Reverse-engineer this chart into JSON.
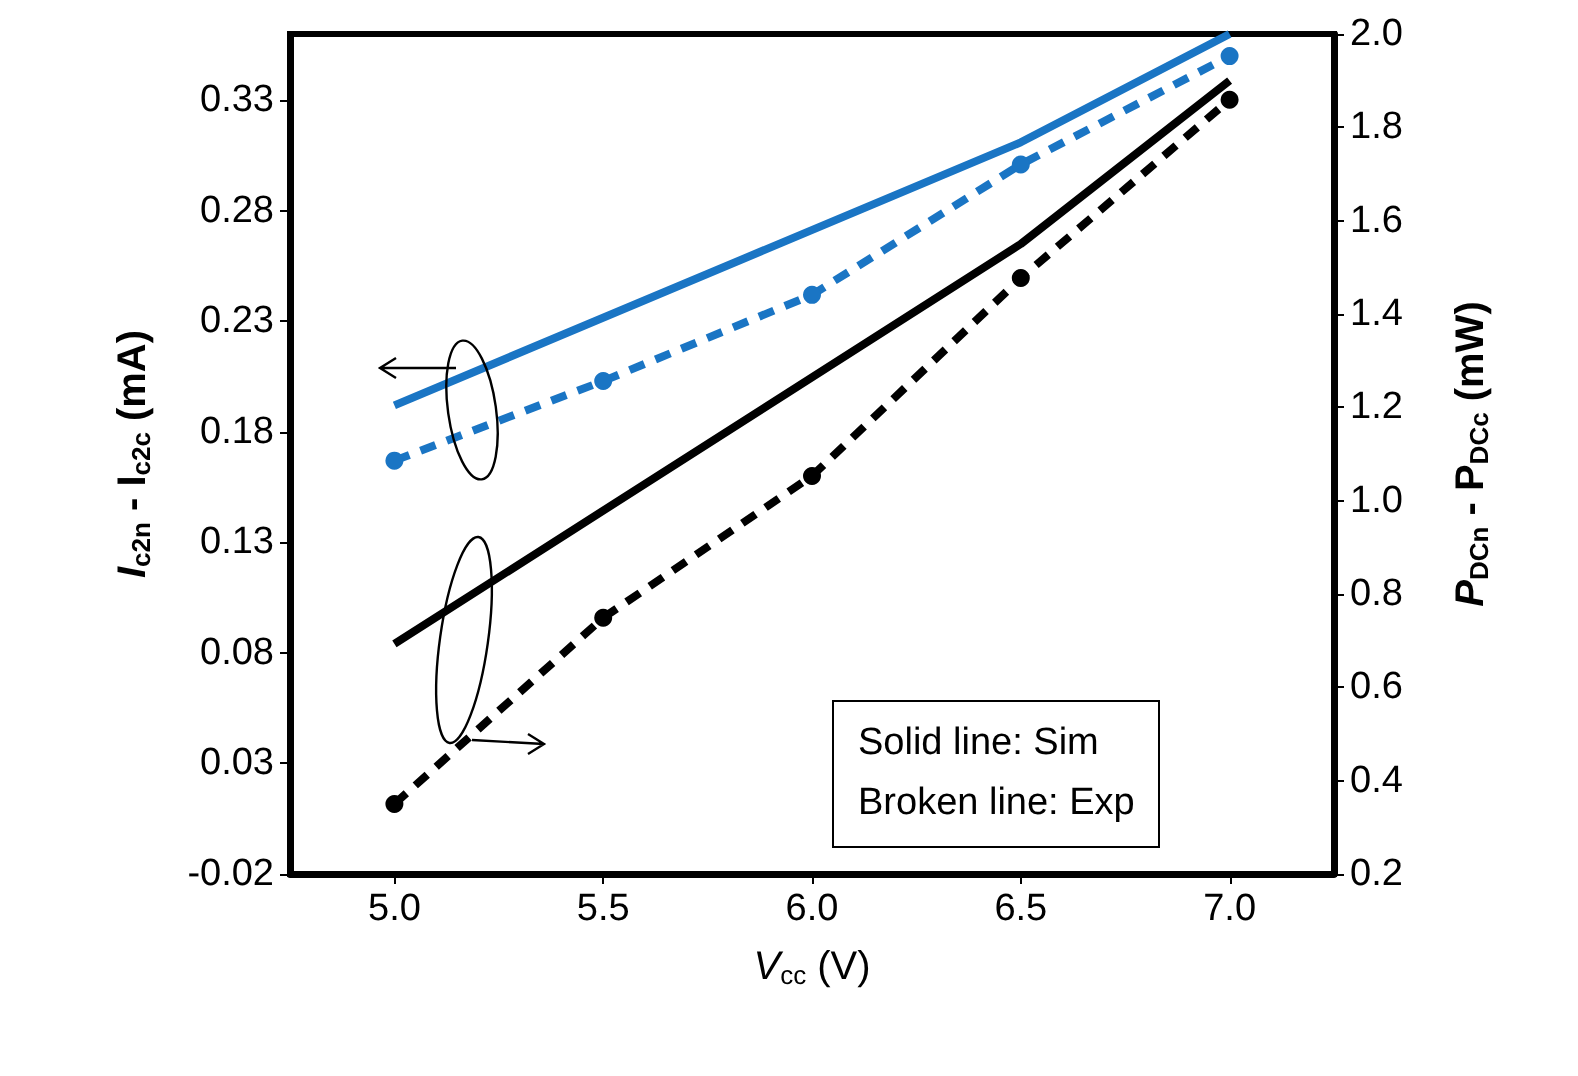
{
  "chart_data": {
    "type": "line",
    "xlabel": "V$_{cc}$ (V)",
    "ylabel": "I$_{c2n}$ - I$_{c2c}$ (mA)",
    "y2label": "P$_{DCn}$ - P$_{DCc}$ (mW)",
    "annotations": [
      "Solid line: Sim",
      "Broken line: Exp"
    ],
    "xlim": [
      4.75,
      7.25
    ],
    "xticks": [
      {
        "value": 5,
        "label": "5.0"
      },
      {
        "value": 5.5,
        "label": "5.5"
      },
      {
        "value": 6,
        "label": "6.0"
      },
      {
        "value": 6.5,
        "label": "6.5"
      },
      {
        "value": 7,
        "label": "7.0"
      }
    ],
    "ylim": [
      -0.02,
      0.36
    ],
    "yticks": [
      -0.02,
      0.03,
      0.08,
      0.13,
      0.18,
      0.23,
      0.28,
      0.33
    ],
    "y2lim": [
      0.2,
      2.0
    ],
    "y2ticks": [
      0.2,
      0.4,
      0.6,
      0.8,
      {
        "value": 1,
        "label": "1.0"
      },
      1.2,
      1.4,
      1.6,
      1.8,
      {
        "value": 2,
        "label": "2.0"
      }
    ],
    "grid": false,
    "series": [
      {
        "color": "#1a75c4",
        "x": [
          5,
          6.5,
          7
        ],
        "values": [
          0.192,
          0.311,
          0.36
        ],
        "line_style": "solid",
        "marker": "none"
      },
      {
        "color": "#1a75c4",
        "x": [
          5,
          5.5,
          6,
          6.5,
          7
        ],
        "values": [
          0.167,
          0.203,
          0.242,
          0.301,
          0.35
        ],
        "line_style": "dashed",
        "marker": "circle"
      },
      {
        "color": "#000000",
        "axis": "y2",
        "x": [
          5,
          6.5,
          7
        ],
        "values": [
          0.693,
          1.55,
          1.9
        ],
        "line_style": "solid",
        "marker": "none"
      },
      {
        "color": "#000000",
        "axis": "y2",
        "x": [
          5,
          5.5,
          6,
          6.5,
          7
        ],
        "values": [
          0.35,
          0.749,
          1.053,
          1.477,
          1.859
        ],
        "line_style": "dashed",
        "marker": "circle"
      }
    ]
  }
}
